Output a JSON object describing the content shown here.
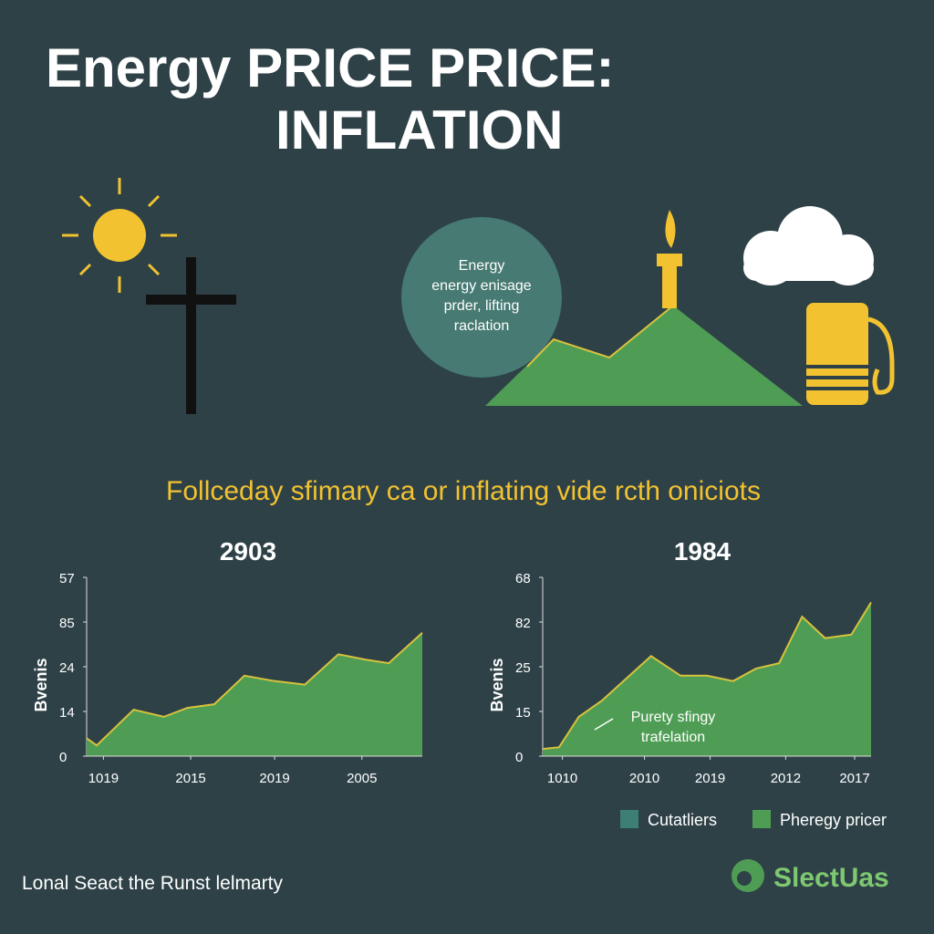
{
  "header": {
    "title_line1": "Energy PRICE PRICE:",
    "title_line2": "INFLATION"
  },
  "bubble": {
    "lines": [
      "Energy",
      "energy enisage",
      "prder, lifting",
      "raclation"
    ]
  },
  "subtitle": "Follceday sfimary ca or inflating vide rcth oniciots",
  "chart_data": [
    {
      "type": "area",
      "title": "2903",
      "y_label": "Bvenis",
      "color": "#4f9d55",
      "line_color": "#d8c23c",
      "x": [
        0,
        3,
        14,
        23,
        30,
        38,
        47,
        56,
        65,
        75,
        83,
        90,
        100
      ],
      "values": [
        10,
        6,
        26,
        22,
        27,
        29,
        45,
        42,
        40,
        57,
        54,
        52,
        69
      ],
      "xlim": [
        0,
        100
      ],
      "ylim": [
        0,
        100
      ],
      "xticks": [
        {
          "value": 5,
          "label": "1019"
        },
        {
          "value": 31,
          "label": "2015"
        },
        {
          "value": 56,
          "label": "2019"
        },
        {
          "value": 82,
          "label": "2005"
        }
      ],
      "yticks": [
        0,
        {
          "value": 25,
          "label": "14"
        },
        {
          "value": 50,
          "label": "24"
        },
        {
          "value": 75,
          "label": "85"
        },
        {
          "value": 100,
          "label": "57"
        }
      ]
    },
    {
      "type": "area",
      "title": "1984",
      "y_label": "Bvenis",
      "color": "#4f9d55",
      "line_color": "#d8c23c",
      "x": [
        0,
        5,
        11,
        18,
        33,
        42,
        50,
        58,
        65,
        72,
        79,
        86,
        94,
        100
      ],
      "values": [
        4,
        5,
        22,
        31,
        56,
        45,
        45,
        42,
        49,
        52,
        78,
        66,
        68,
        86
      ],
      "xlim": [
        0,
        100
      ],
      "ylim": [
        0,
        100
      ],
      "xticks": [
        {
          "value": 6,
          "label": "1010"
        },
        {
          "value": 31,
          "label": "2010"
        },
        {
          "value": 51,
          "label": "2019"
        },
        {
          "value": 74,
          "label": "2012"
        },
        {
          "value": 95,
          "label": "2017"
        }
      ],
      "yticks": [
        0,
        {
          "value": 25,
          "label": "15"
        },
        {
          "value": 50,
          "label": "25"
        },
        {
          "value": 75,
          "label": "82"
        },
        {
          "value": 100,
          "label": "68"
        }
      ],
      "annotation": {
        "lines": [
          "Purety sfingy",
          "trafelation"
        ]
      }
    }
  ],
  "legend": [
    {
      "name": "Cutatliers",
      "color": "#3d7f74"
    },
    {
      "name": "Pheregy pricer",
      "color": "#4f9d55"
    }
  ],
  "footer": "Lonal Seact the Runst lelmarty",
  "logo": "SlectUas"
}
